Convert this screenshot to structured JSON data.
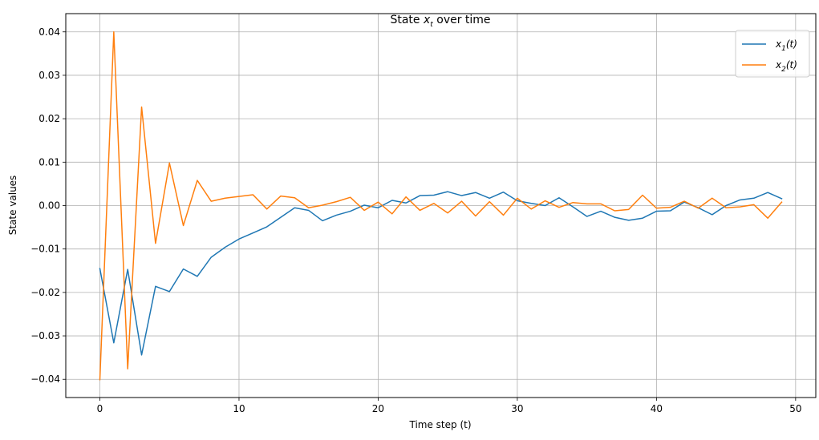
{
  "chart_data": {
    "type": "line",
    "title_prefix": "State ",
    "title_var": "x",
    "title_sub": "t",
    "title_suffix": " over time",
    "xlabel": "Time step (t)",
    "ylabel": "State values",
    "xlim": [
      -2.45,
      51.45
    ],
    "ylim": [
      -0.0442,
      0.0442
    ],
    "xticks": [
      0,
      10,
      20,
      30,
      40,
      50
    ],
    "xtick_labels": [
      "0",
      "10",
      "20",
      "30",
      "40",
      "50"
    ],
    "yticks": [
      -0.04,
      -0.03,
      -0.02,
      -0.01,
      0.0,
      0.01,
      0.02,
      0.03,
      0.04
    ],
    "ytick_labels": [
      "−0.04",
      "−0.03",
      "−0.02",
      "−0.01",
      "0.00",
      "0.01",
      "0.02",
      "0.03",
      "0.04"
    ],
    "grid": true,
    "legend_position": "top-right",
    "x": [
      0,
      1,
      2,
      3,
      4,
      5,
      6,
      7,
      8,
      9,
      10,
      11,
      12,
      13,
      14,
      15,
      16,
      17,
      18,
      19,
      20,
      21,
      22,
      23,
      24,
      25,
      26,
      27,
      28,
      29,
      30,
      31,
      32,
      33,
      34,
      35,
      36,
      37,
      38,
      39,
      40,
      41,
      42,
      43,
      44,
      45,
      46,
      47,
      48,
      49
    ],
    "series": [
      {
        "name": "x1(t)",
        "label_var": "x",
        "label_sub": "1",
        "label_suffix": "(t)",
        "color": "#1f77b4",
        "values": [
          -0.0145,
          -0.0316,
          -0.0147,
          -0.0344,
          -0.0186,
          -0.0198,
          -0.0146,
          -0.0163,
          -0.0119,
          -0.0096,
          -0.0077,
          -0.0063,
          -0.0049,
          -0.0027,
          -0.0005,
          -0.0011,
          -0.0035,
          -0.0022,
          -0.0013,
          0.0001,
          -0.0005,
          0.0012,
          0.0006,
          0.0023,
          0.0024,
          0.0032,
          0.0023,
          0.003,
          0.0017,
          0.0031,
          0.0011,
          0.0005,
          0.0,
          0.0018,
          -0.0003,
          -0.0025,
          -0.0013,
          -0.0027,
          -0.0034,
          -0.0029,
          -0.0013,
          -0.0012,
          0.0008,
          -0.0005,
          -0.0021,
          0.0,
          0.0013,
          0.0017,
          0.003,
          0.0016
        ]
      },
      {
        "name": "x2(t)",
        "label_var": "x",
        "label_sub": "2",
        "label_suffix": "(t)",
        "color": "#ff7f0e",
        "values": [
          -0.0401,
          0.04,
          -0.0376,
          0.0227,
          -0.0087,
          0.0098,
          -0.0046,
          0.0058,
          0.001,
          0.0017,
          0.0021,
          0.0025,
          -0.0008,
          0.0022,
          0.0018,
          -0.0005,
          0.0001,
          0.0009,
          0.0019,
          -0.0011,
          0.0008,
          -0.0019,
          0.002,
          -0.0011,
          0.0005,
          -0.0017,
          0.001,
          -0.0024,
          0.0009,
          -0.0022,
          0.0017,
          -0.0008,
          0.0011,
          -0.0004,
          0.0007,
          0.0004,
          0.0004,
          -0.0012,
          -0.0009,
          0.0024,
          -0.0006,
          -0.0004,
          0.001,
          -0.0006,
          0.0017,
          -0.0005,
          -0.0003,
          0.0002,
          -0.0029,
          0.0008
        ]
      }
    ]
  }
}
